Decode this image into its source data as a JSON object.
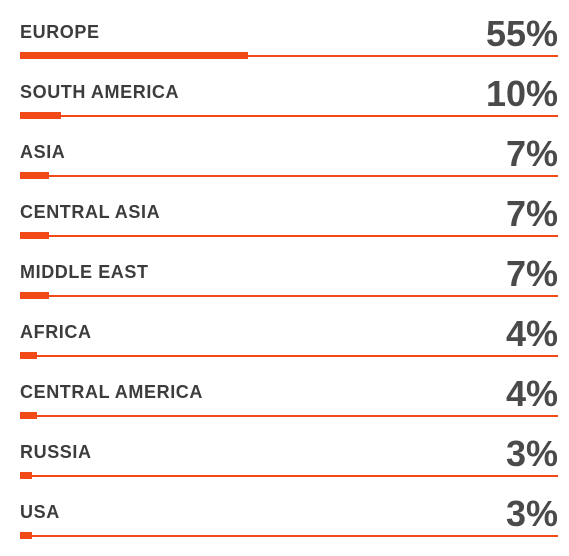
{
  "chart_data": {
    "type": "bar",
    "orientation": "horizontal",
    "categories": [
      "EUROPE",
      "SOUTH AMERICA",
      "ASIA",
      "CENTRAL ASIA",
      "MIDDLE EAST",
      "AFRICA",
      "CENTRAL AMERICA",
      "RUSSIA",
      "USA"
    ],
    "values": [
      55,
      10,
      7,
      7,
      7,
      4,
      4,
      3,
      3
    ],
    "value_labels": [
      "55%",
      "10%",
      "7%",
      "7%",
      "7%",
      "4%",
      "4%",
      "3%",
      "3%"
    ],
    "xlim": [
      0,
      100
    ],
    "title": "",
    "xlabel": "",
    "ylabel": "",
    "grid": false,
    "legend": "none",
    "bar_color": "#f24a16",
    "label_color": "#3c3c3c",
    "value_color": "#4a4a4a"
  }
}
